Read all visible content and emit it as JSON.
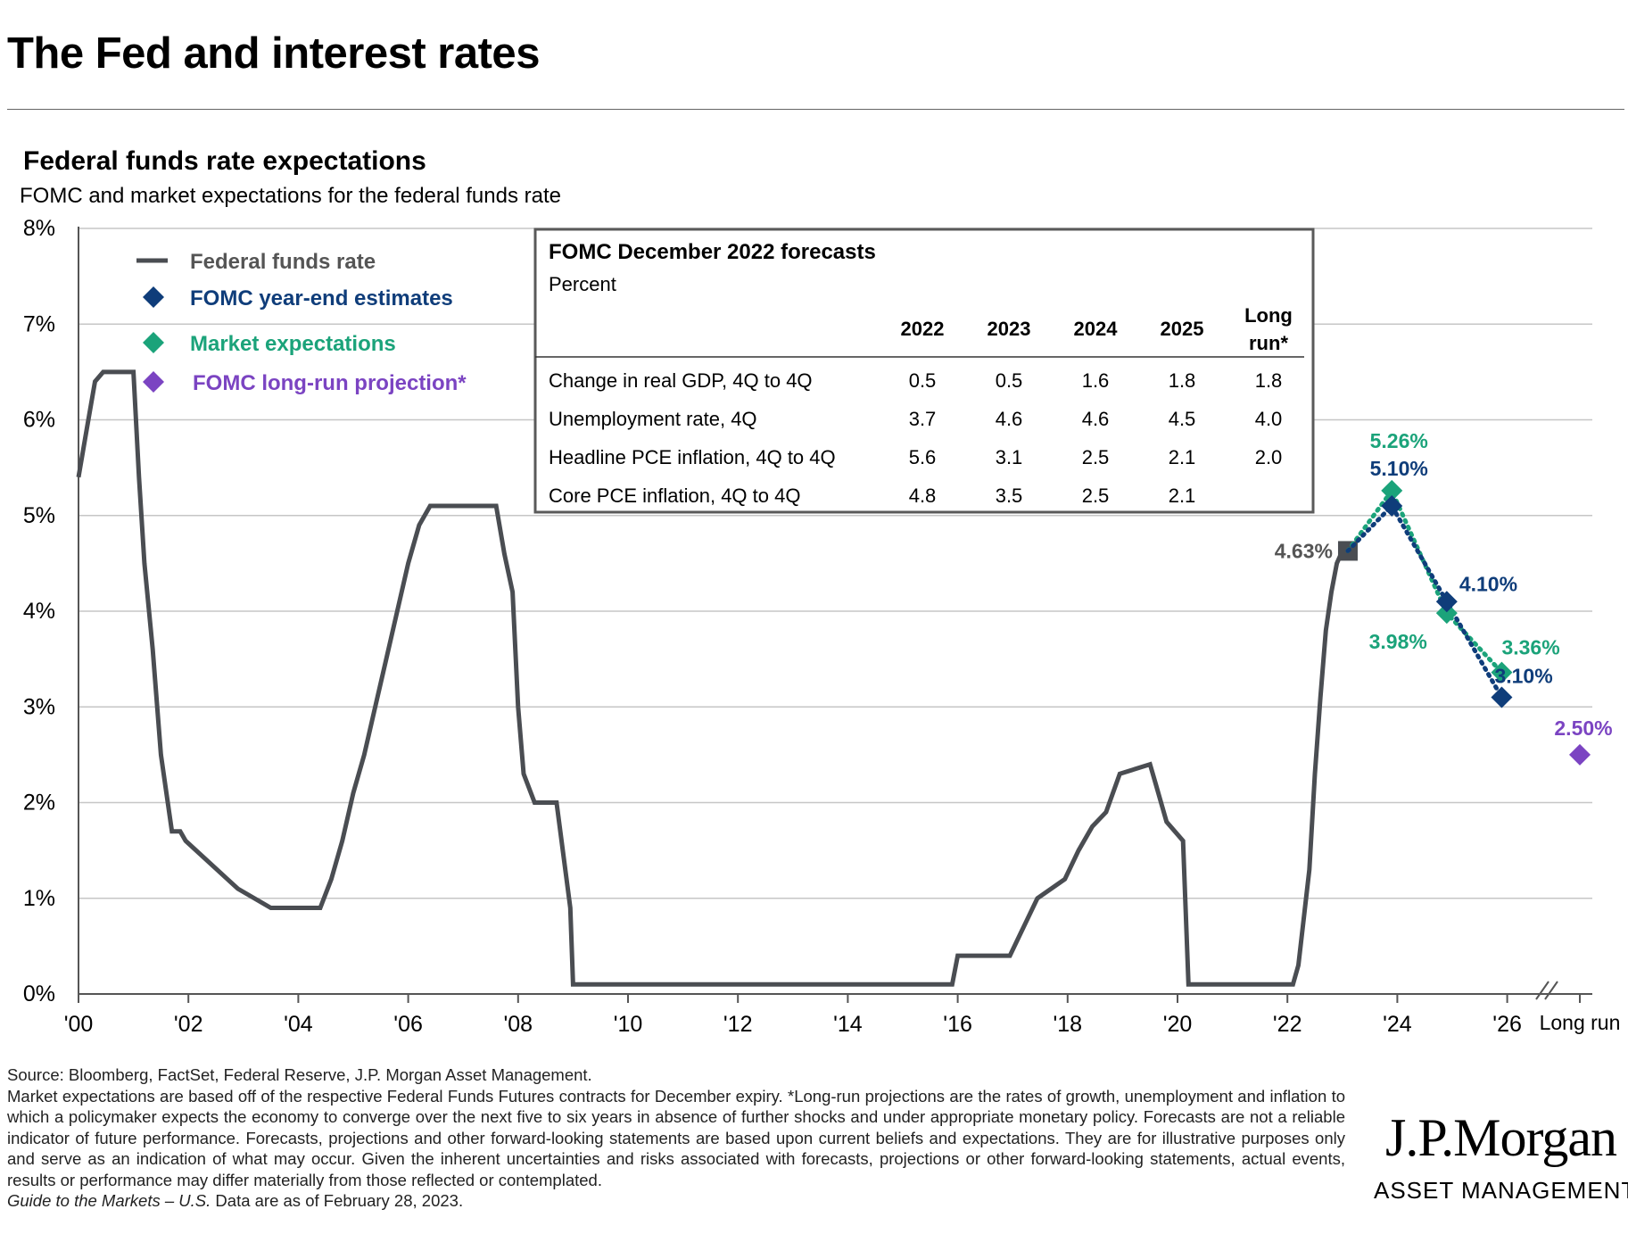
{
  "page": {
    "title": "The Fed and interest rates"
  },
  "chart_data": {
    "type": "line",
    "title": "Federal funds rate expectations",
    "subtitle": "FOMC and market expectations for the federal funds rate",
    "ylim": [
      0,
      8
    ],
    "y_ticks": [
      "0%",
      "1%",
      "2%",
      "3%",
      "4%",
      "5%",
      "6%",
      "7%",
      "8%"
    ],
    "x_ticks": [
      "'00",
      "'02",
      "'04",
      "'06",
      "'08",
      "'10",
      "'12",
      "'14",
      "'16",
      "'18",
      "'20",
      "'22",
      "'24",
      "'26",
      "Long run"
    ],
    "legend": {
      "position": "top-left",
      "items": [
        {
          "label": "Federal funds rate",
          "color": "#4a4d52",
          "marker": "line"
        },
        {
          "label": "FOMC year-end estimates",
          "color": "#0f3d7a",
          "marker": "diamond"
        },
        {
          "label": "Market expectations",
          "color": "#1ba37a",
          "marker": "diamond"
        },
        {
          "label": "FOMC long-run projection*",
          "color": "#7b44c2",
          "marker": "diamond"
        }
      ]
    },
    "series": [
      {
        "name": "Federal funds rate",
        "color": "#4a4d52",
        "x": [
          2000.0,
          2000.15,
          2000.3,
          2000.45,
          2000.6,
          2001.0,
          2001.1,
          2001.2,
          2001.35,
          2001.5,
          2001.7,
          2001.85,
          2001.95,
          2002.9,
          2003.5,
          2004.4,
          2004.6,
          2004.8,
          2005.0,
          2005.2,
          2005.4,
          2005.6,
          2005.8,
          2006.0,
          2006.2,
          2006.4,
          2006.6,
          2007.6,
          2007.75,
          2007.9,
          2008.0,
          2008.1,
          2008.3,
          2008.7,
          2008.95,
          2009.0,
          2015.9,
          2016.0,
          2016.95,
          2017.2,
          2017.45,
          2017.95,
          2018.2,
          2018.45,
          2018.7,
          2018.95,
          2019.5,
          2019.6,
          2019.8,
          2020.1,
          2020.2,
          2022.1,
          2022.2,
          2022.4,
          2022.5,
          2022.6,
          2022.7,
          2022.8,
          2022.9,
          2023.0,
          2023.1
        ],
        "values": [
          5.4,
          5.9,
          6.4,
          6.5,
          6.5,
          6.5,
          5.4,
          4.5,
          3.6,
          2.5,
          1.7,
          1.7,
          1.6,
          1.1,
          0.9,
          0.9,
          1.2,
          1.6,
          2.1,
          2.5,
          3.0,
          3.5,
          4.0,
          4.5,
          4.9,
          5.1,
          5.1,
          5.1,
          4.6,
          4.2,
          3.0,
          2.3,
          2.0,
          2.0,
          0.9,
          0.1,
          0.1,
          0.4,
          0.4,
          0.7,
          1.0,
          1.2,
          1.5,
          1.75,
          1.9,
          2.3,
          2.4,
          2.2,
          1.8,
          1.6,
          0.1,
          0.1,
          0.3,
          1.3,
          2.3,
          3.1,
          3.8,
          4.2,
          4.5,
          4.63,
          4.63
        ],
        "end_label": "4.63%"
      },
      {
        "name": "FOMC year-end estimates",
        "color": "#0f3d7a",
        "x": [
          2023.1,
          2023.9,
          2024.9,
          2025.9
        ],
        "values": [
          4.63,
          5.1,
          4.1,
          3.1
        ],
        "labels": [
          "",
          "5.10%",
          "4.10%",
          "3.10%"
        ]
      },
      {
        "name": "Market expectations",
        "color": "#1ba37a",
        "x": [
          2023.1,
          2023.9,
          2024.9,
          2025.9
        ],
        "values": [
          4.63,
          5.26,
          3.98,
          3.36
        ],
        "labels": [
          "",
          "5.26%",
          "3.98%",
          "3.36%"
        ]
      },
      {
        "name": "FOMC long-run projection*",
        "color": "#7b44c2",
        "x": [
          "Long run"
        ],
        "values": [
          2.5
        ],
        "labels": [
          "2.50%"
        ]
      }
    ],
    "inset_table": {
      "title": "FOMC December 2022 forecasts",
      "subtitle": "Percent",
      "headers": [
        "2022",
        "2023",
        "2024",
        "2025",
        "Long run*"
      ],
      "rows": [
        {
          "label": "Change in real GDP, 4Q to 4Q",
          "values": [
            "0.5",
            "0.5",
            "1.6",
            "1.8",
            "1.8"
          ]
        },
        {
          "label": "Unemployment rate, 4Q",
          "values": [
            "3.7",
            "4.6",
            "4.6",
            "4.5",
            "4.0"
          ]
        },
        {
          "label": "Headline PCE inflation, 4Q to 4Q",
          "values": [
            "5.6",
            "3.1",
            "2.5",
            "2.1",
            "2.0"
          ]
        },
        {
          "label": "Core PCE inflation, 4Q to 4Q",
          "values": [
            "4.8",
            "3.5",
            "2.5",
            "2.1",
            ""
          ]
        }
      ]
    }
  },
  "footer": {
    "source": "Source: Bloomberg, FactSet, Federal Reserve, J.P. Morgan Asset Management.",
    "notes": "Market expectations are based off of the respective Federal Funds Futures contracts for December expiry. *Long-run projections are the rates of growth, unemployment and inflation to which a policymaker expects the economy to converge over the next five to six years in absence of further shocks and under appropriate monetary policy. Forecasts are not a reliable indicator of future performance. Forecasts, projections and other forward-looking statements are based upon current beliefs and expectations. They are for illustrative purposes only and serve as an indication of what may occur. Given the inherent uncertainties and risks associated with forecasts, projections or other forward-looking statements, actual events, results or performance may differ materially from those reflected or contemplated.",
    "guide_italic": "Guide to the Markets – U.S.",
    "data_date": " Data are as of February 28, 2023."
  },
  "logo": {
    "main": "J.P.Morgan",
    "sub": "ASSET MANAGEMENT"
  }
}
